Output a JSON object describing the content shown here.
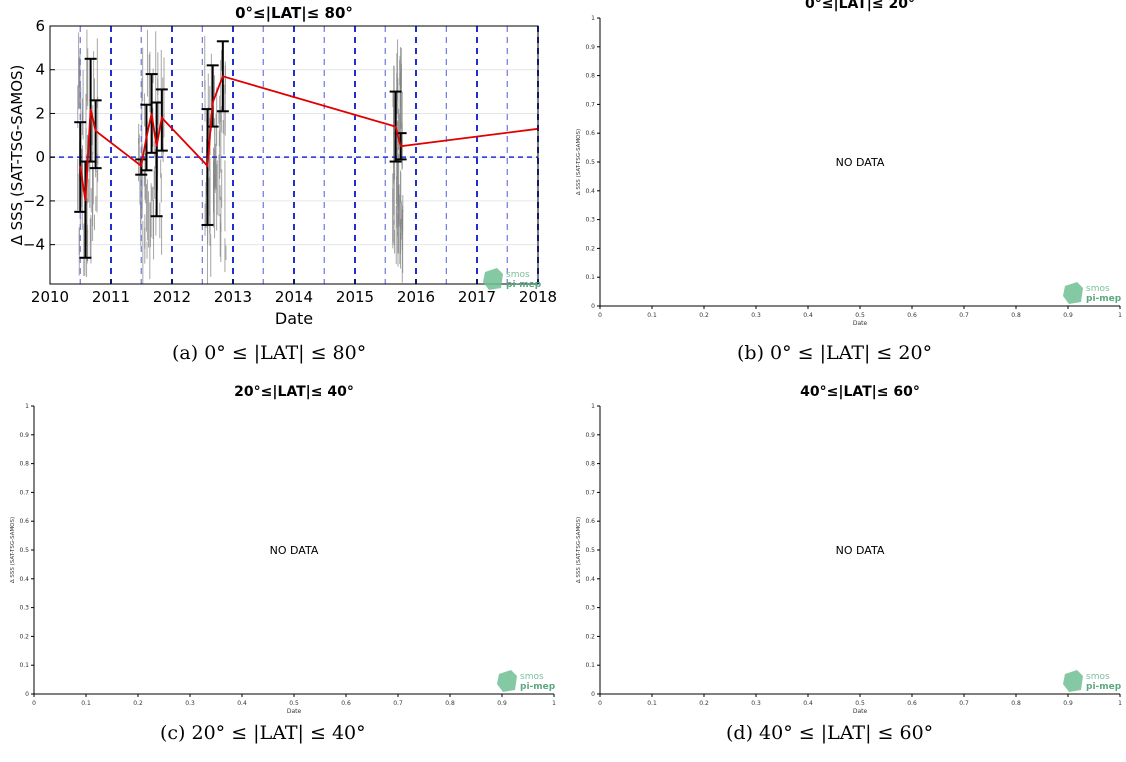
{
  "chart_data": [
    {
      "type": "scatter",
      "title": "0°≤|LAT|≤ 80°",
      "xlabel": "Date",
      "ylabel": "Δ SSS (SAT-TSG-SAMOS)",
      "xlim": [
        "2010-01-01",
        "2018-01-01"
      ],
      "ylim": [
        -5.8,
        6
      ],
      "x_ticks": [
        "2010",
        "2011",
        "2012",
        "2013",
        "2014",
        "2015",
        "2016",
        "2017",
        "2018"
      ],
      "y_ticks": [
        -4,
        -2,
        0,
        2,
        4,
        6
      ],
      "zero_line": 0,
      "grid": true,
      "series": [
        {
          "role": "monthly mean with std error bars",
          "color": "#e00000",
          "points": [
            {
              "x": "2010-07-01",
              "y": -0.4,
              "err_low": -2.5,
              "err_high": 1.6
            },
            {
              "x": "2010-08-01",
              "y": -2.0,
              "err_low": -4.6,
              "err_high": -0.2
            },
            {
              "x": "2010-09-01",
              "y": 2.2,
              "err_low": -0.2,
              "err_high": 4.5
            },
            {
              "x": "2010-10-01",
              "y": 1.2,
              "err_low": -0.5,
              "err_high": 2.6
            },
            {
              "x": "2011-07-01",
              "y": -0.4,
              "err_low": -0.8,
              "err_high": -0.1
            },
            {
              "x": "2011-08-01",
              "y": 0.9,
              "err_low": -0.6,
              "err_high": 2.4
            },
            {
              "x": "2011-09-01",
              "y": 2.0,
              "err_low": 0.2,
              "err_high": 3.8
            },
            {
              "x": "2011-10-01",
              "y": 0.5,
              "err_low": -2.7,
              "err_high": 2.5
            },
            {
              "x": "2011-11-01",
              "y": 1.8,
              "err_low": 0.3,
              "err_high": 3.1
            },
            {
              "x": "2012-08-01",
              "y": -0.4,
              "err_low": -3.1,
              "err_high": 2.2
            },
            {
              "x": "2012-09-01",
              "y": 2.5,
              "err_low": 1.4,
              "err_high": 4.2
            },
            {
              "x": "2012-11-01",
              "y": 3.7,
              "err_low": 2.1,
              "err_high": 5.3
            },
            {
              "x": "2015-09-01",
              "y": 1.4,
              "err_low": -0.2,
              "err_high": 3.0
            },
            {
              "x": "2015-10-01",
              "y": 0.5,
              "err_low": -0.1,
              "err_high": 1.1
            },
            {
              "x": "2018-01-01",
              "y": 1.3
            }
          ]
        },
        {
          "role": "individual collocations (grey)",
          "color": "#808080",
          "x_ranges": [
            [
              "2010-06-15",
              "2010-10-15"
            ],
            [
              "2011-06-15",
              "2011-11-15"
            ],
            [
              "2012-07-15",
              "2012-11-20"
            ],
            [
              "2015-08-15",
              "2015-10-15"
            ]
          ]
        }
      ],
      "blue_dashed_vertical_lines": [
        "2010-07-01",
        "2011-01-01",
        "2011-07-01",
        "2012-01-01",
        "2012-07-01",
        "2013-01-01",
        "2013-07-01",
        "2014-01-01",
        "2014-07-01",
        "2015-01-01",
        "2015-07-01",
        "2016-01-01",
        "2016-07-01",
        "2017-01-01",
        "2017-07-01",
        "2018-01-01"
      ],
      "watermark": [
        "smos",
        "pi-mep"
      ]
    },
    {
      "type": "scatter",
      "title": "0°≤|LAT|≤ 20°",
      "xlabel": "Date",
      "ylabel": "Δ SSS (SAT-TSG-SAMOS)",
      "xlim": [
        0,
        1
      ],
      "ylim": [
        0,
        1
      ],
      "x_ticks": [
        "0",
        "0.1",
        "0.2",
        "0.3",
        "0.4",
        "0.5",
        "0.6",
        "0.7",
        "0.8",
        "0.9",
        "1"
      ],
      "y_ticks": [
        "0",
        "0.1",
        "0.2",
        "0.3",
        "0.4",
        "0.5",
        "0.6",
        "0.7",
        "0.8",
        "0.9",
        "1"
      ],
      "message": "NO DATA",
      "watermark": [
        "smos",
        "pi-mep"
      ]
    },
    {
      "type": "scatter",
      "title": "20°≤|LAT|≤ 40°",
      "xlabel": "Date",
      "ylabel": "Δ SSS (SAT-TSG-SAMOS)",
      "xlim": [
        0,
        1
      ],
      "ylim": [
        0,
        1
      ],
      "x_ticks": [
        "0",
        "0.1",
        "0.2",
        "0.3",
        "0.4",
        "0.5",
        "0.6",
        "0.7",
        "0.8",
        "0.9",
        "1"
      ],
      "y_ticks": [
        "0",
        "0.1",
        "0.2",
        "0.3",
        "0.4",
        "0.5",
        "0.6",
        "0.7",
        "0.8",
        "0.9",
        "1"
      ],
      "message": "NO DATA",
      "watermark": [
        "smos",
        "pi-mep"
      ]
    },
    {
      "type": "scatter",
      "title": "40°≤|LAT|≤ 60°",
      "xlabel": "Date",
      "ylabel": "Δ SSS (SAT-TSG-SAMOS)",
      "xlim": [
        0,
        1
      ],
      "ylim": [
        0,
        1
      ],
      "x_ticks": [
        "0",
        "0.1",
        "0.2",
        "0.3",
        "0.4",
        "0.5",
        "0.6",
        "0.7",
        "0.8",
        "0.9",
        "1"
      ],
      "y_ticks": [
        "0",
        "0.1",
        "0.2",
        "0.3",
        "0.4",
        "0.5",
        "0.6",
        "0.7",
        "0.8",
        "0.9",
        "1"
      ],
      "message": "NO DATA",
      "watermark": [
        "smos",
        "pi-mep"
      ]
    }
  ],
  "captions": [
    "(a) 0° ≤ |LAT| ≤ 80°",
    "(b) 0° ≤ |LAT| ≤ 20°",
    "(c) 20° ≤ |LAT| ≤ 40°",
    "(d) 40° ≤ |LAT| ≤ 60°"
  ]
}
